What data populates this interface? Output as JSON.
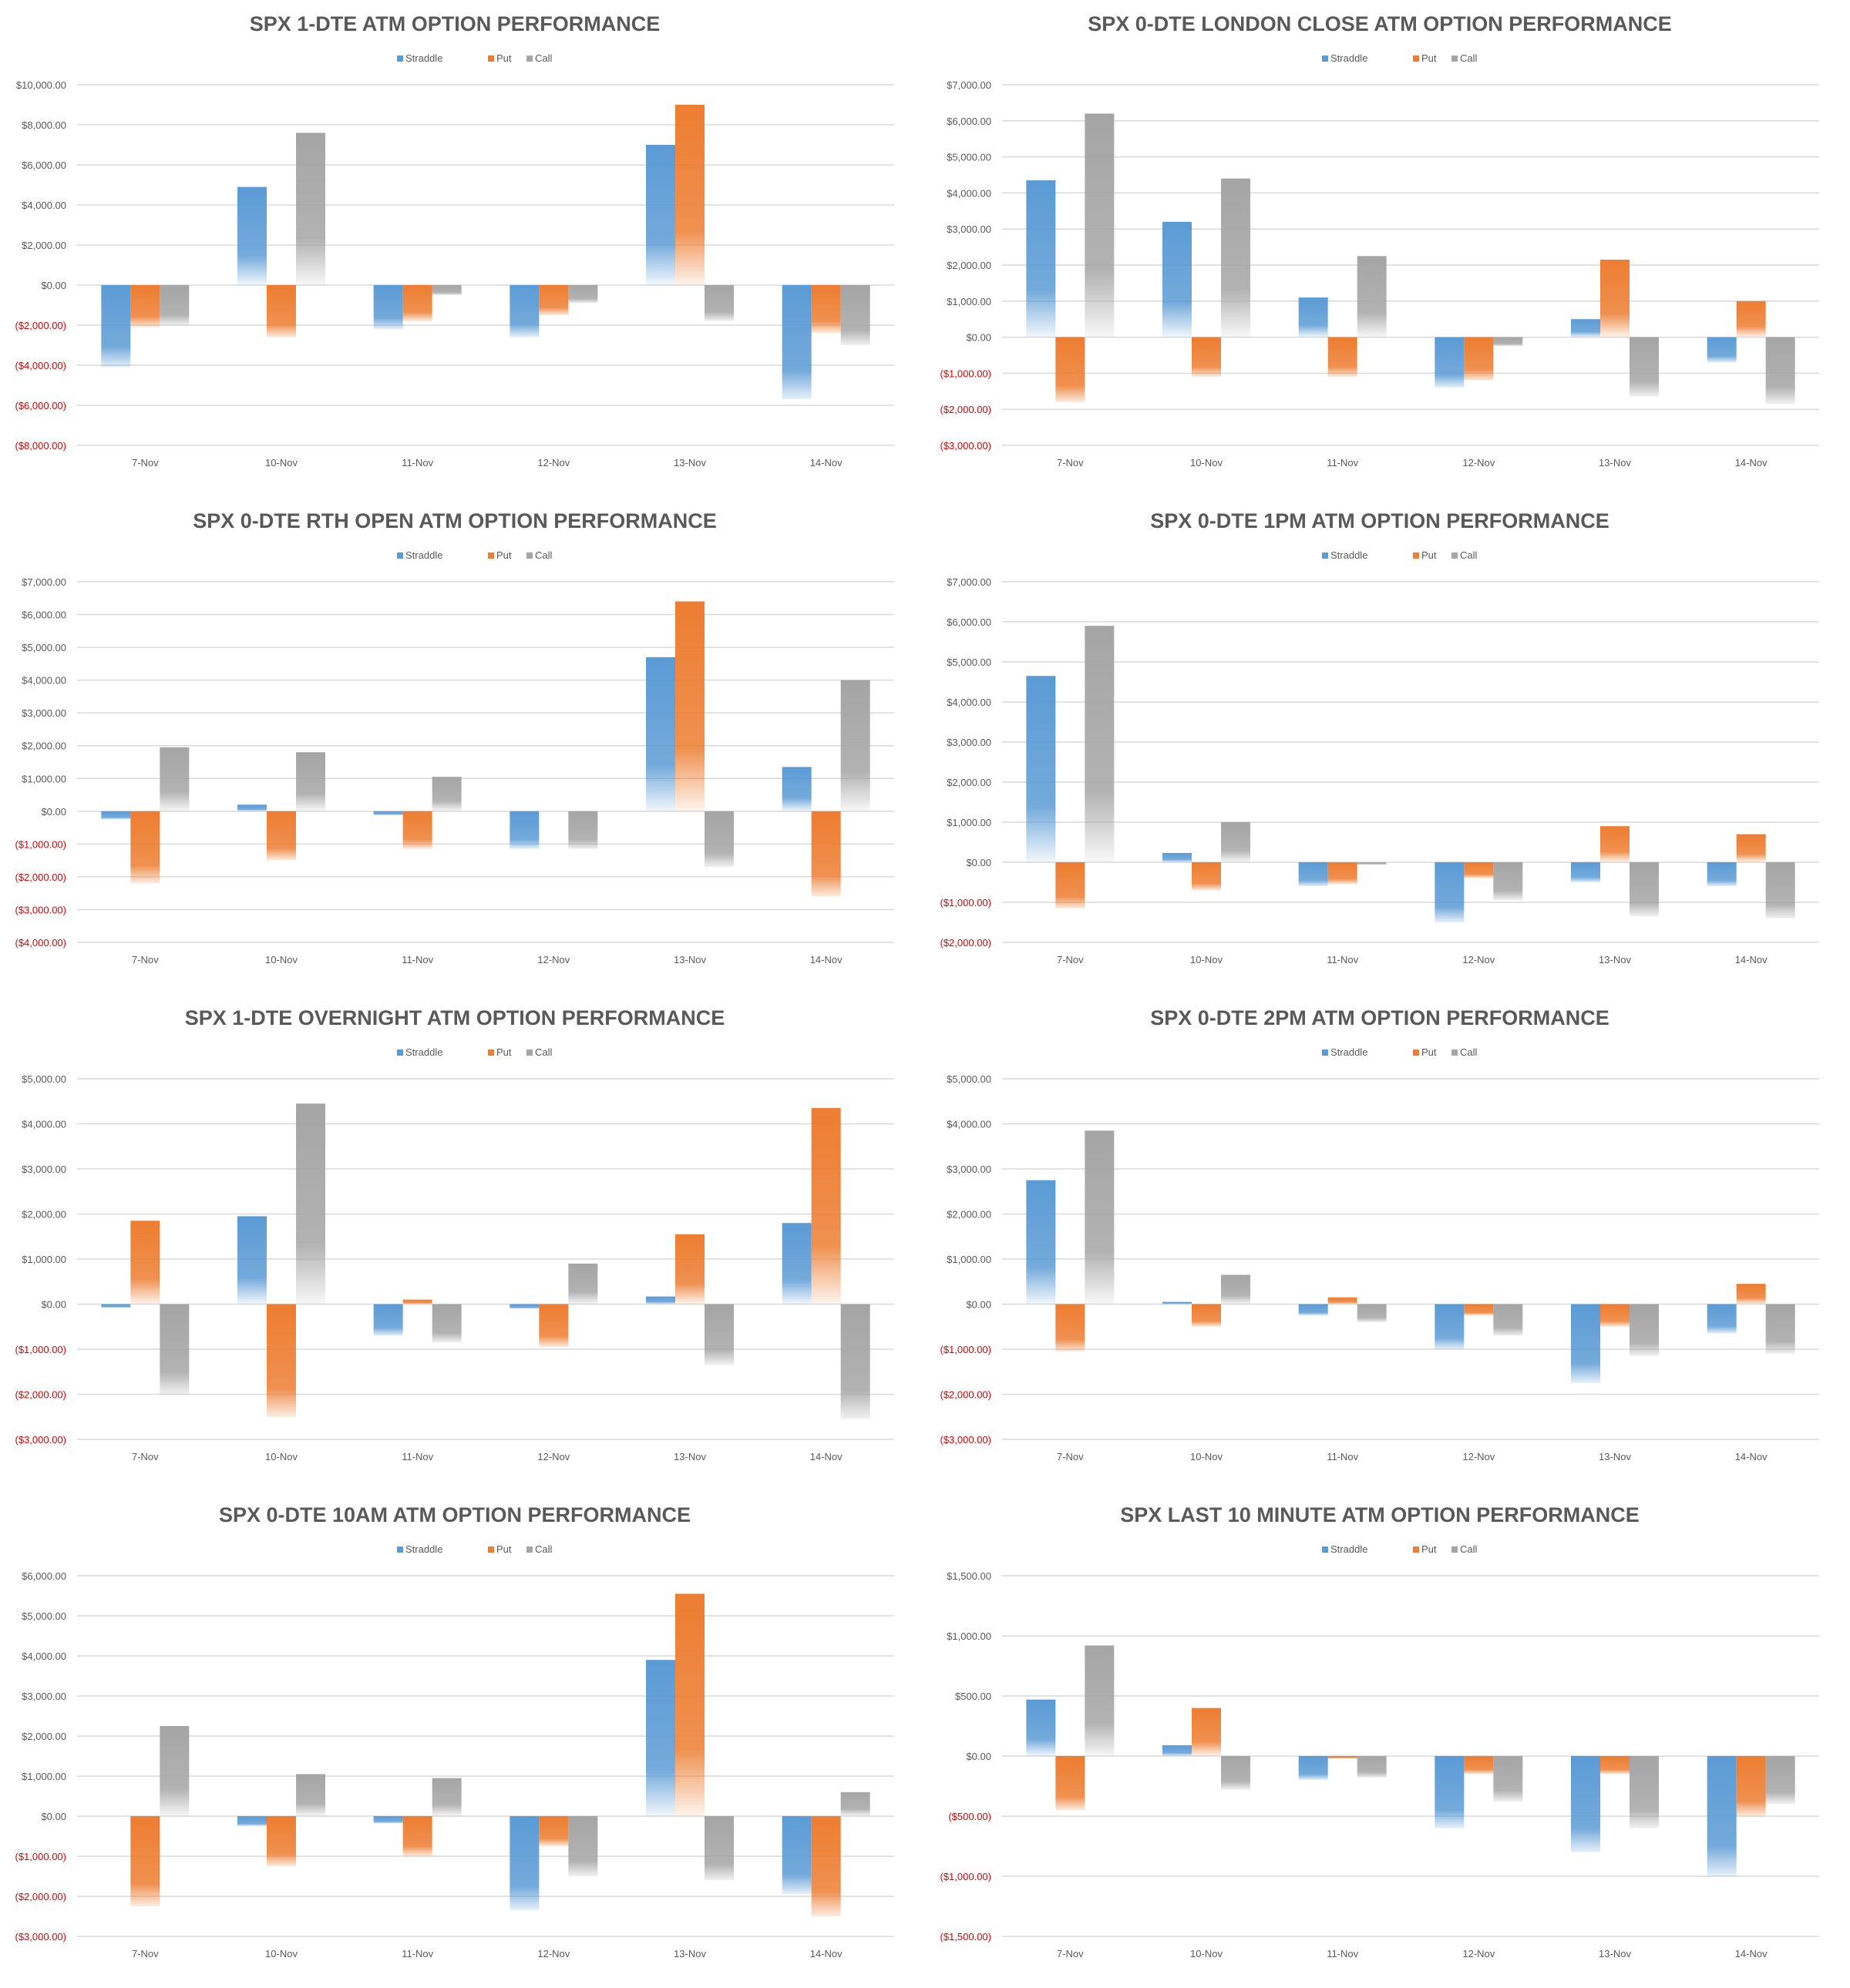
{
  "colors": {
    "straddle": "#5b9bd5",
    "put": "#ed7d31",
    "call": "#a5a5a5",
    "negative_tick": "#e00000",
    "grid": "#d9d9d9",
    "text": "#595959"
  },
  "chart_data": [
    {
      "type": "bar",
      "title": "SPX 1-DTE ATM OPTION PERFORMANCE",
      "categories": [
        "7-Nov",
        "10-Nov",
        "11-Nov",
        "12-Nov",
        "13-Nov",
        "14-Nov"
      ],
      "series": [
        {
          "name": "Straddle",
          "values": [
            -4100,
            4900,
            -2200,
            -2600,
            7000,
            -5700
          ]
        },
        {
          "name": "Put",
          "values": [
            -2100,
            -2600,
            -1800,
            -1500,
            9000,
            -2400
          ]
        },
        {
          "name": "Call",
          "values": [
            -2000,
            7600,
            -500,
            -900,
            -1800,
            -3000
          ]
        }
      ],
      "ylim": [
        -8000,
        10000
      ],
      "yticks": [
        10000,
        8000,
        6000,
        4000,
        2000,
        0,
        -2000,
        -4000,
        -6000,
        -8000
      ],
      "ytick_labels": [
        "$10,000.00",
        "$8,000.00",
        "$6,000.00",
        "$4,000.00",
        "$2,000.00",
        "$0.00",
        "($2,000.00)",
        "($4,000.00)",
        "($6,000.00)",
        "($8,000.00)"
      ]
    },
    {
      "type": "bar",
      "title": "SPX 0-DTE  LONDON CLOSE ATM OPTION PERFORMANCE",
      "categories": [
        "7-Nov",
        "10-Nov",
        "11-Nov",
        "12-Nov",
        "13-Nov",
        "14-Nov"
      ],
      "series": [
        {
          "name": "Straddle",
          "values": [
            4350,
            3200,
            1100,
            -1400,
            500,
            -700
          ]
        },
        {
          "name": "Put",
          "values": [
            -1800,
            -1100,
            -1100,
            -1200,
            2150,
            1000
          ]
        },
        {
          "name": "Call",
          "values": [
            6200,
            4400,
            2250,
            -250,
            -1650,
            -1850
          ]
        }
      ],
      "ylim": [
        -3000,
        7000
      ],
      "yticks": [
        7000,
        6000,
        5000,
        4000,
        3000,
        2000,
        1000,
        0,
        -1000,
        -2000,
        -3000
      ],
      "ytick_labels": [
        "$7,000.00",
        "$6,000.00",
        "$5,000.00",
        "$4,000.00",
        "$3,000.00",
        "$2,000.00",
        "$1,000.00",
        "$0.00",
        "($1,000.00)",
        "($2,000.00)",
        "($3,000.00)"
      ]
    },
    {
      "type": "bar",
      "title": "SPX 0-DTE RTH OPEN ATM OPTION PERFORMANCE",
      "categories": [
        "7-Nov",
        "10-Nov",
        "11-Nov",
        "12-Nov",
        "13-Nov",
        "14-Nov"
      ],
      "series": [
        {
          "name": "Straddle",
          "values": [
            -250,
            200,
            -120,
            -1150,
            4700,
            1350
          ]
        },
        {
          "name": "Put",
          "values": [
            -2200,
            -1500,
            -1150,
            0,
            6400,
            -2600
          ]
        },
        {
          "name": "Call",
          "values": [
            1950,
            1800,
            1050,
            -1150,
            -1700,
            4000
          ]
        }
      ],
      "ylim": [
        -4000,
        7000
      ],
      "yticks": [
        7000,
        6000,
        5000,
        4000,
        3000,
        2000,
        1000,
        0,
        -1000,
        -2000,
        -3000,
        -4000
      ],
      "ytick_labels": [
        "$7,000.00",
        "$6,000.00",
        "$5,000.00",
        "$4,000.00",
        "$3,000.00",
        "$2,000.00",
        "$1,000.00",
        "$0.00",
        "($1,000.00)",
        "($2,000.00)",
        "($3,000.00)",
        "($4,000.00)"
      ]
    },
    {
      "type": "bar",
      "title": "SPX 0-DTE 1PM ATM OPTION PERFORMANCE",
      "categories": [
        "7-Nov",
        "10-Nov",
        "11-Nov",
        "12-Nov",
        "13-Nov",
        "14-Nov"
      ],
      "series": [
        {
          "name": "Straddle",
          "values": [
            4650,
            230,
            -600,
            -1500,
            -500,
            -600
          ]
        },
        {
          "name": "Put",
          "values": [
            -1150,
            -700,
            -550,
            -400,
            900,
            700
          ]
        },
        {
          "name": "Call",
          "values": [
            5900,
            1000,
            -60,
            -950,
            -1350,
            -1400
          ]
        }
      ],
      "ylim": [
        -2000,
        7000
      ],
      "yticks": [
        7000,
        6000,
        5000,
        4000,
        3000,
        2000,
        1000,
        0,
        -1000,
        -2000
      ],
      "ytick_labels": [
        "$7,000.00",
        "$6,000.00",
        "$5,000.00",
        "$4,000.00",
        "$3,000.00",
        "$2,000.00",
        "$1,000.00",
        "$0.00",
        "($1,000.00)",
        "($2,000.00)"
      ]
    },
    {
      "type": "bar",
      "title": "SPX 1-DTE OVERNIGHT ATM OPTION PERFORMANCE",
      "categories": [
        "7-Nov",
        "10-Nov",
        "11-Nov",
        "12-Nov",
        "13-Nov",
        "14-Nov"
      ],
      "series": [
        {
          "name": "Straddle",
          "values": [
            -80,
            1950,
            -700,
            -100,
            170,
            1800
          ]
        },
        {
          "name": "Put",
          "values": [
            1850,
            -2500,
            100,
            -950,
            1550,
            4350
          ]
        },
        {
          "name": "Call",
          "values": [
            -2000,
            4450,
            -850,
            900,
            -1350,
            -2550
          ]
        }
      ],
      "ylim": [
        -3000,
        5000
      ],
      "yticks": [
        5000,
        4000,
        3000,
        2000,
        1000,
        0,
        -1000,
        -2000,
        -3000
      ],
      "ytick_labels": [
        "$5,000.00",
        "$4,000.00",
        "$3,000.00",
        "$2,000.00",
        "$1,000.00",
        "$0.00",
        "($1,000.00)",
        "($2,000.00)",
        "($3,000.00)"
      ]
    },
    {
      "type": "bar",
      "title": "SPX 0-DTE 2PM ATM OPTION PERFORMANCE",
      "categories": [
        "7-Nov",
        "10-Nov",
        "11-Nov",
        "12-Nov",
        "13-Nov",
        "14-Nov"
      ],
      "series": [
        {
          "name": "Straddle",
          "values": [
            2750,
            50,
            -250,
            -1000,
            -1750,
            -650
          ]
        },
        {
          "name": "Put",
          "values": [
            -1050,
            -500,
            150,
            -250,
            -500,
            450
          ]
        },
        {
          "name": "Call",
          "values": [
            3850,
            650,
            -400,
            -700,
            -1150,
            -1100
          ]
        }
      ],
      "ylim": [
        -3000,
        5000
      ],
      "yticks": [
        5000,
        4000,
        3000,
        2000,
        1000,
        0,
        -1000,
        -2000,
        -3000
      ],
      "ytick_labels": [
        "$5,000.00",
        "$4,000.00",
        "$3,000.00",
        "$2,000.00",
        "$1,000.00",
        "$0.00",
        "($1,000.00)",
        "($2,000.00)",
        "($3,000.00)"
      ]
    },
    {
      "type": "bar",
      "title": "SPX 0-DTE 10AM ATM OPTION PERFORMANCE",
      "categories": [
        "7-Nov",
        "10-Nov",
        "11-Nov",
        "12-Nov",
        "13-Nov",
        "14-Nov"
      ],
      "series": [
        {
          "name": "Straddle",
          "values": [
            0,
            -250,
            -180,
            -2350,
            3900,
            -1950
          ]
        },
        {
          "name": "Put",
          "values": [
            -2250,
            -1250,
            -1000,
            -750,
            5550,
            -2500
          ]
        },
        {
          "name": "Call",
          "values": [
            2250,
            1050,
            950,
            -1500,
            -1600,
            600
          ]
        }
      ],
      "ylim": [
        -3000,
        6000
      ],
      "yticks": [
        6000,
        5000,
        4000,
        3000,
        2000,
        1000,
        0,
        -1000,
        -2000,
        -3000
      ],
      "ytick_labels": [
        "$6,000.00",
        "$5,000.00",
        "$4,000.00",
        "$3,000.00",
        "$2,000.00",
        "$1,000.00",
        "$0.00",
        "($1,000.00)",
        "($2,000.00)",
        "($3,000.00)"
      ]
    },
    {
      "type": "bar",
      "title": "SPX LAST 10 MINUTE ATM OPTION PERFORMANCE",
      "categories": [
        "7-Nov",
        "10-Nov",
        "11-Nov",
        "12-Nov",
        "13-Nov",
        "14-Nov"
      ],
      "series": [
        {
          "name": "Straddle",
          "values": [
            470,
            90,
            -200,
            -600,
            -800,
            -1000
          ]
        },
        {
          "name": "Put",
          "values": [
            -450,
            400,
            -20,
            -150,
            -150,
            -500
          ]
        },
        {
          "name": "Call",
          "values": [
            920,
            -280,
            -180,
            -380,
            -600,
            -400
          ]
        }
      ],
      "ylim": [
        -1500,
        1500
      ],
      "yticks": [
        1500,
        1000,
        500,
        0,
        -500,
        -1000,
        -1500
      ],
      "ytick_labels": [
        "$1,500.00",
        "$1,000.00",
        "$500.00",
        "$0.00",
        "($500.00)",
        "($1,000.00)",
        "($1,500.00)"
      ]
    }
  ]
}
